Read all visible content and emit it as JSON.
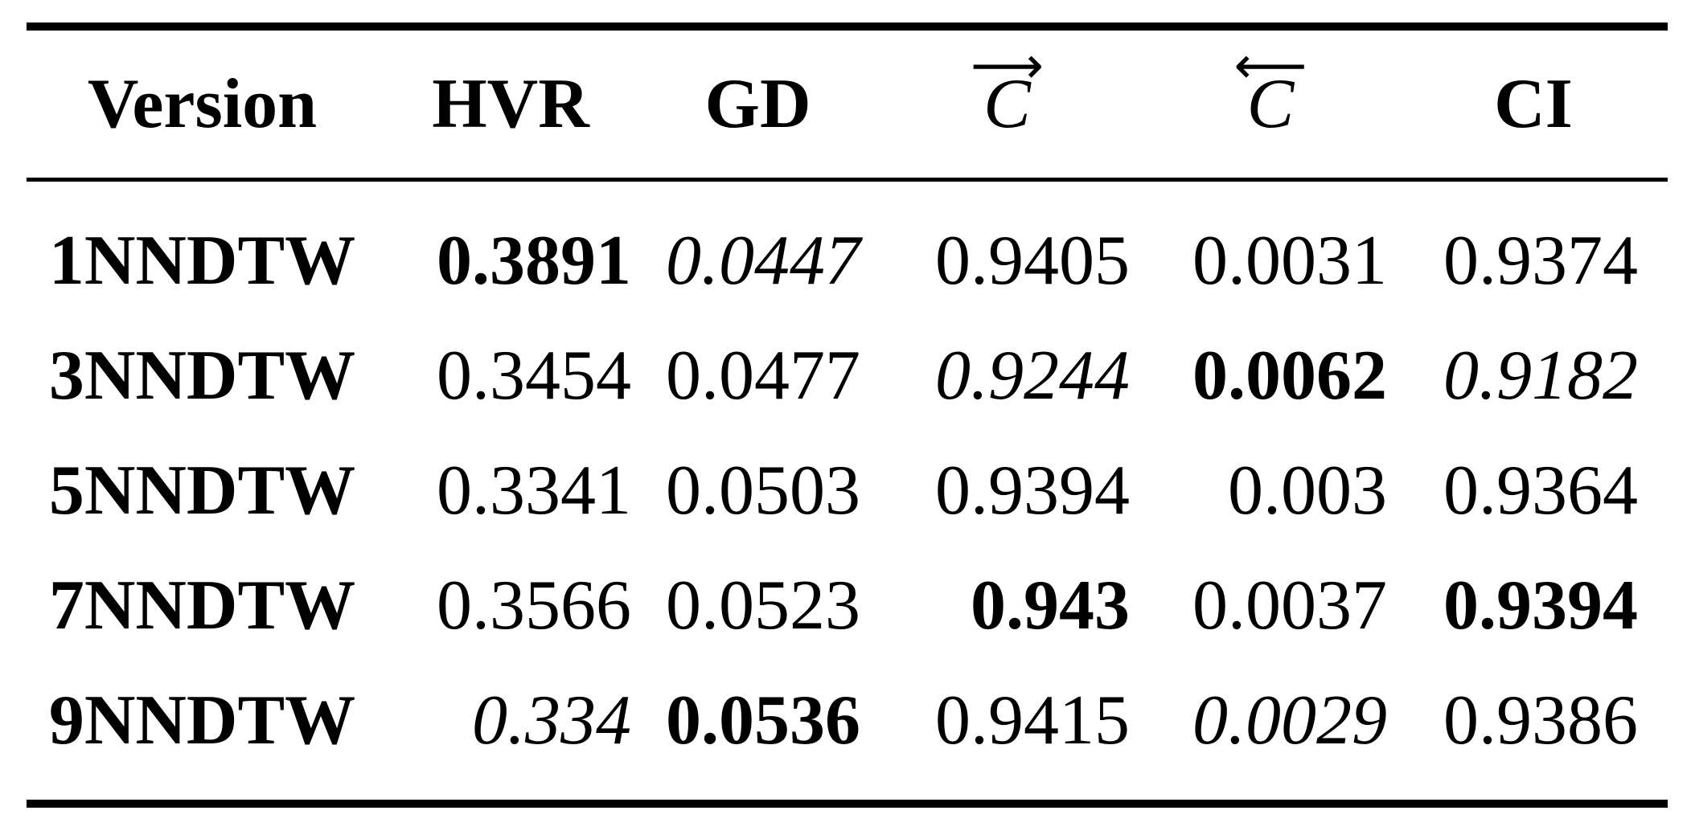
{
  "table": {
    "columns": [
      {
        "label": "Version",
        "style": "bold"
      },
      {
        "label": "HVR",
        "style": "bold"
      },
      {
        "label": "GD",
        "style": "bold"
      },
      {
        "label": "C",
        "style": "italic",
        "arrow": "right",
        "arrow_glyph": "⟶"
      },
      {
        "label": "C",
        "style": "italic",
        "arrow": "left",
        "arrow_glyph": "⟵"
      },
      {
        "label": "CI",
        "style": "bold"
      }
    ],
    "rows": [
      {
        "version": "1NNDTW",
        "cells": [
          {
            "v": "0.3891",
            "style": "bold"
          },
          {
            "v": "0.0447",
            "style": "italic"
          },
          {
            "v": "0.9405",
            "style": "normal"
          },
          {
            "v": "0.0031",
            "style": "normal"
          },
          {
            "v": "0.9374",
            "style": "normal"
          }
        ]
      },
      {
        "version": "3NNDTW",
        "cells": [
          {
            "v": "0.3454",
            "style": "normal"
          },
          {
            "v": "0.0477",
            "style": "normal"
          },
          {
            "v": "0.9244",
            "style": "italic"
          },
          {
            "v": "0.0062",
            "style": "bold"
          },
          {
            "v": "0.9182",
            "style": "italic"
          }
        ]
      },
      {
        "version": "5NNDTW",
        "cells": [
          {
            "v": "0.3341",
            "style": "normal"
          },
          {
            "v": "0.0503",
            "style": "normal"
          },
          {
            "v": "0.9394",
            "style": "normal"
          },
          {
            "v": "0.003",
            "style": "normal"
          },
          {
            "v": "0.9364",
            "style": "normal"
          }
        ]
      },
      {
        "version": "7NNDTW",
        "cells": [
          {
            "v": "0.3566",
            "style": "normal"
          },
          {
            "v": "0.0523",
            "style": "normal"
          },
          {
            "v": "0.943",
            "style": "bold"
          },
          {
            "v": "0.0037",
            "style": "normal"
          },
          {
            "v": "0.9394",
            "style": "bold"
          }
        ]
      },
      {
        "version": "9NNDTW",
        "cells": [
          {
            "v": "0.334",
            "style": "italic"
          },
          {
            "v": "0.0536",
            "style": "bold"
          },
          {
            "v": "0.9415",
            "style": "normal"
          },
          {
            "v": "0.0029",
            "style": "italic"
          },
          {
            "v": "0.9386",
            "style": "normal"
          }
        ]
      }
    ]
  }
}
